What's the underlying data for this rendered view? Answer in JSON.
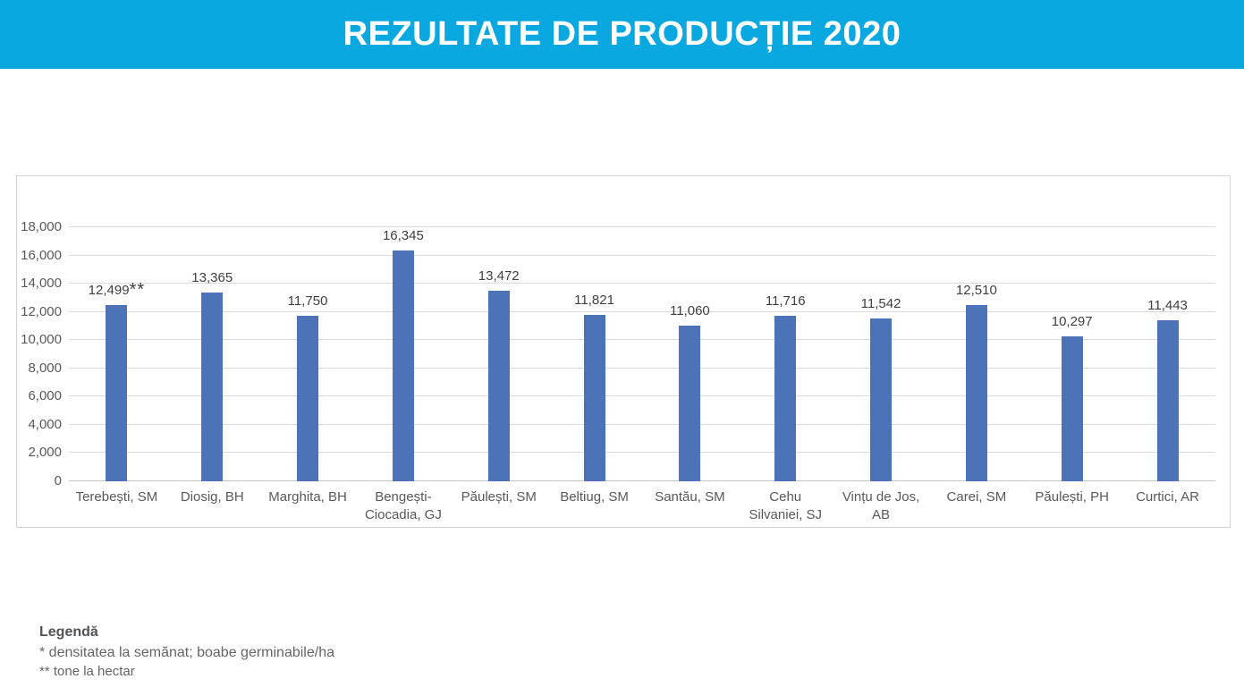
{
  "banner": {
    "title": "REZULTATE DE PRODUCȚIE 2020",
    "bg_color": "#0aa8e0",
    "text_color": "#ffffff"
  },
  "chart_data": {
    "type": "bar",
    "title": "REZULTATE DE PRODUCȚIE 2020",
    "categories": [
      "Terebești, SM",
      "Diosig, BH",
      "Marghita, BH",
      "Bengești-Ciocadia, GJ",
      "Păulești, SM",
      "Beltiug, SM",
      "Santău, SM",
      "Cehu Silvaniei, SJ",
      "Vințu de Jos, AB",
      "Carei, SM",
      "Păulești, PH",
      "Curtici, AR"
    ],
    "values": [
      12499,
      13365,
      11750,
      16345,
      13472,
      11821,
      11060,
      11716,
      11542,
      12510,
      10297,
      11443
    ],
    "data_labels": [
      "12,499**",
      "13,365",
      "11,750",
      "16,345",
      "13,472",
      "11,821",
      "11,060",
      "11,716",
      "11,542",
      "12,510",
      "10,297",
      "11,443"
    ],
    "xlabel": "",
    "ylabel": "",
    "ylim": [
      0,
      18000
    ],
    "ytick_step": 2000,
    "ytick_labels": [
      "0",
      "2,000",
      "4,000",
      "6,000",
      "8,000",
      "10,000",
      "12,000",
      "14,000",
      "16,000",
      "18,000"
    ],
    "grid": true,
    "legend_position": "none",
    "bar_color": "#4c72b8"
  },
  "legend": {
    "heading": "Legendă",
    "line1": "* densitatea la semănat; boabe germinabile/ha",
    "line2": "** tone la hectar"
  }
}
